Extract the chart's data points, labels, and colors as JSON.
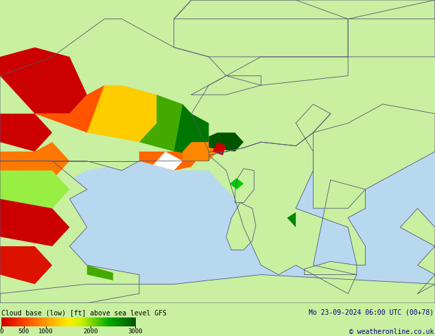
{
  "title_left": "Cloud base (low) [ft] above sea level GFS",
  "title_right": "Mo 23-09-2024 06:00 UTC (00+78)",
  "copyright": "© weatheronline.co.uk",
  "colorbar_values": [
    0,
    500,
    1000,
    2000,
    3000
  ],
  "bg_color": "#c8f0a0",
  "land_color": "#c8f0a0",
  "sea_color": "#aaddff",
  "border_color": "#666688",
  "text_color": "#000080",
  "bottom_bg": "#d0e8b0",
  "fig_width": 6.34,
  "fig_height": 4.9,
  "dpi": 100,
  "color_stops": [
    [
      0.0,
      "#cc0000"
    ],
    [
      0.1,
      "#ee2200"
    ],
    [
      0.2,
      "#ff5500"
    ],
    [
      0.3,
      "#ff8800"
    ],
    [
      0.4,
      "#ffbb00"
    ],
    [
      0.5,
      "#ffee00"
    ],
    [
      0.6,
      "#ccee00"
    ],
    [
      0.7,
      "#66cc00"
    ],
    [
      0.8,
      "#00aa00"
    ],
    [
      1.0,
      "#005500"
    ]
  ]
}
